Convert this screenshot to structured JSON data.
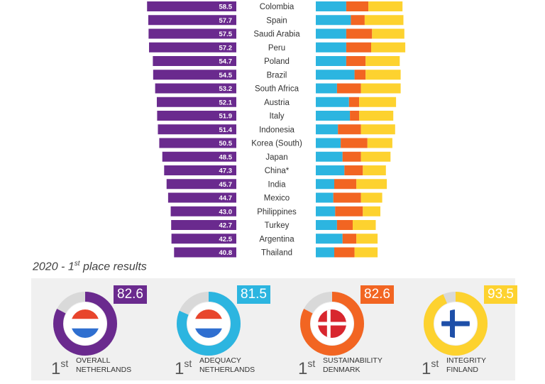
{
  "chart_data": {
    "type": "bar",
    "categories": [
      "Colombia",
      "Spain",
      "Saudi Arabia",
      "Peru",
      "Poland",
      "Brazil",
      "South Africa",
      "Austria",
      "Italy",
      "Indonesia",
      "Korea (South)",
      "Japan",
      "China*",
      "India",
      "Mexico",
      "Philippines",
      "Turkey",
      "Argentina",
      "Thailand"
    ],
    "series": [
      {
        "values": [
          58.5,
          57.7,
          57.5,
          57.2,
          54.7,
          54.5,
          53.2,
          52.1,
          51.9,
          51.4,
          50.5,
          48.5,
          47.3,
          45.7,
          44.7,
          43.0,
          42.7,
          42.5,
          40.8
        ]
      },
      {
        "values": [
          33,
          38,
          33,
          33,
          33,
          42,
          23,
          36,
          37,
          24,
          27,
          29,
          31,
          20,
          19,
          21,
          23,
          29,
          20
        ]
      },
      {
        "values": [
          24,
          15,
          28,
          27,
          21,
          12,
          26,
          11,
          10,
          25,
          29,
          20,
          20,
          24,
          30,
          30,
          17,
          15,
          22
        ]
      },
      {
        "values": [
          37,
          42,
          35,
          37,
          37,
          38,
          43,
          40,
          37,
          37,
          27,
          32,
          25,
          33,
          23,
          19,
          25,
          23,
          25
        ]
      }
    ],
    "value_labels": [
      "58.5",
      "57.7",
      "57.5",
      "57.2",
      "54.7",
      "54.5",
      "53.2",
      "52.1",
      "51.9",
      "51.4",
      "50.5",
      "48.5",
      "47.3",
      "45.7",
      "44.7",
      "43.0",
      "42.7",
      "42.5",
      "40.8"
    ],
    "stack_colors": [
      "#2cb5e0",
      "#f26522",
      "#fdd22f"
    ],
    "overall_color": "#6a2a8e"
  },
  "section_title": {
    "text": "2020 - 1",
    "sup": "st",
    "rest": " place results"
  },
  "cards": [
    {
      "score": "82.6",
      "place": "1",
      "sup": "st",
      "line1": "OVERALL",
      "line2": "NETHERLANDS",
      "color": "#6a2a8e",
      "fill": 0.826,
      "flag": "netherlands"
    },
    {
      "score": "81.5",
      "place": "1",
      "sup": "st",
      "line1": "ADEQUACY",
      "line2": "NETHERLANDS",
      "color": "#2cb5e0",
      "fill": 0.815,
      "flag": "netherlands"
    },
    {
      "score": "82.6",
      "place": "1",
      "sup": "st",
      "line1": "SUSTAINABILITY",
      "line2": "DENMARK",
      "color": "#f26522",
      "fill": 0.826,
      "flag": "denmark"
    },
    {
      "score": "93.5",
      "place": "1",
      "sup": "st",
      "line1": "INTEGRITY",
      "line2": "FINLAND",
      "color": "#fdd22f",
      "fill": 0.935,
      "flag": "finland"
    }
  ]
}
